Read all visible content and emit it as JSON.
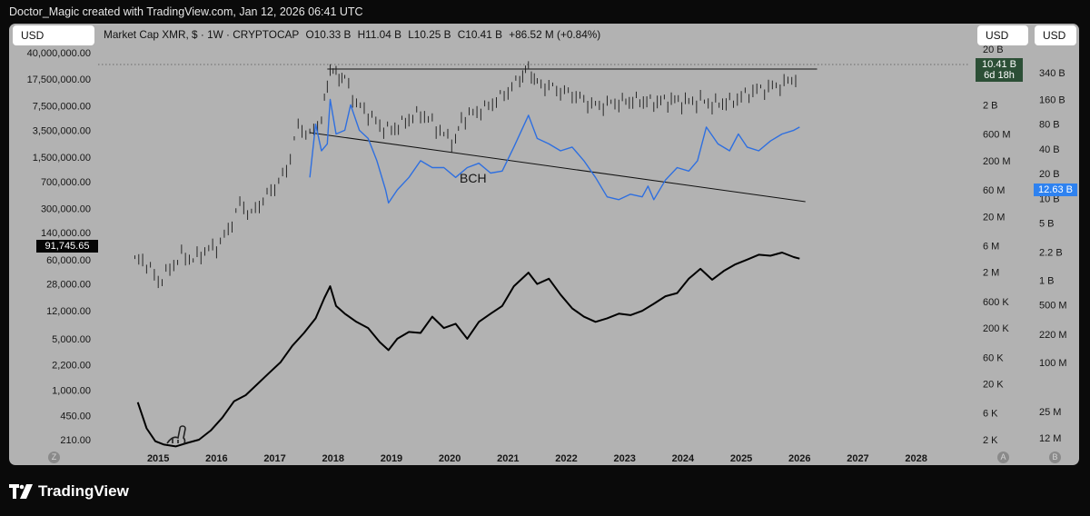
{
  "credit": "Doctor_Magic created with TradingView.com, Jan 12, 2026 06:41 UTC",
  "currency_buttons": {
    "left": "USD",
    "right_a": "USD",
    "right_b": "USD"
  },
  "legend": {
    "symbol": "Market Cap XMR, $ · 1W · CRYPTOCAP",
    "open": "O10.33 B",
    "high": "H11.04 B",
    "low": "L10.25 B",
    "close": "C10.41 B",
    "change": "+86.52 M (+0.84%)"
  },
  "badges": {
    "xmr_value": "10.41 B",
    "xmr_countdown": "6d 18h",
    "bch_value": "12.63 B",
    "left_value": "91,745.65"
  },
  "scale_buttons": {
    "left": "Z",
    "right_a": "A",
    "right_b": "B"
  },
  "brand": "TradingView",
  "chart_data": {
    "type": "line",
    "x_axis": {
      "range": [
        2014,
        2028.8
      ],
      "ticks": [
        "2015",
        "2016",
        "2017",
        "2018",
        "2019",
        "2020",
        "2021",
        "2022",
        "2023",
        "2024",
        "2025",
        "2026",
        "2027",
        "2028"
      ]
    },
    "left_axis": {
      "scale": "log",
      "ticks": [
        "40,000,000.00",
        "17,500,000.00",
        "7,500,000.00",
        "3,500,000.00",
        "1,500,000.00",
        "700,000.00",
        "300,000.00",
        "140,000.00",
        "60,000.00",
        "28,000.00",
        "12,000.00",
        "5,000.00",
        "2,200.00",
        "1,000.00",
        "450.00",
        "210.00"
      ]
    },
    "right_axis_a": {
      "scale": "log",
      "ticks": [
        "20 B",
        "2 B",
        "600 M",
        "200 M",
        "60 M",
        "20 M",
        "6 M",
        "2 M",
        "600 K",
        "200 K",
        "60 K",
        "20 K",
        "6 K",
        "2 K"
      ]
    },
    "right_axis_b": {
      "scale": "log",
      "ticks": [
        "340 B",
        "160 B",
        "80 B",
        "40 B",
        "20 B",
        "10 B",
        "5 B",
        "2.2 B",
        "1 B",
        "500 M",
        "220 M",
        "100 M",
        "25 M",
        "12 M"
      ]
    },
    "annotations": [
      "BCH"
    ],
    "series": [
      {
        "name": "Market Cap XMR",
        "style": "candles",
        "color": "#111111",
        "x": [
          2014.6,
          2014.8,
          2015.0,
          2015.2,
          2015.4,
          2015.6,
          2015.8,
          2016.0,
          2016.2,
          2016.4,
          2016.6,
          2016.8,
          2017.0,
          2017.2,
          2017.4,
          2017.6,
          2017.8,
          2017.95,
          2018.05,
          2018.2,
          2018.4,
          2018.6,
          2018.8,
          2019.0,
          2019.3,
          2019.5,
          2019.7,
          2019.9,
          2020.1,
          2020.2,
          2020.4,
          2020.6,
          2020.8,
          2021.0,
          2021.2,
          2021.35,
          2021.5,
          2021.7,
          2021.9,
          2022.1,
          2022.3,
          2022.5,
          2022.7,
          2022.9,
          2023.2,
          2023.5,
          2023.8,
          2024.1,
          2024.3,
          2024.5,
          2024.8,
          2025.0,
          2025.2,
          2025.4,
          2025.6,
          2025.8,
          2026.0
        ],
        "y": [
          60000,
          55000,
          30000,
          45000,
          70000,
          60000,
          80000,
          90000,
          150000,
          350000,
          250000,
          400000,
          600000,
          1000000,
          4000000,
          3000000,
          5000000,
          25000000,
          20000000,
          18000000,
          8000000,
          6000000,
          4000000,
          3500000,
          5000000,
          6000000,
          4500000,
          3000000,
          2500000,
          5000000,
          6000000,
          7000000,
          9000000,
          12000000,
          18000000,
          25000000,
          15000000,
          14000000,
          12000000,
          11000000,
          9000000,
          7500000,
          8000000,
          8500000,
          9000000,
          8500000,
          9000000,
          8500000,
          9000000,
          8000000,
          8500000,
          10000000,
          12000000,
          13000000,
          14000000,
          16000000,
          20000000
        ]
      },
      {
        "name": "BCH",
        "style": "line",
        "color": "#2e6fe0",
        "x": [
          2017.6,
          2017.7,
          2017.8,
          2017.9,
          2017.95,
          2018.05,
          2018.2,
          2018.3,
          2018.45,
          2018.6,
          2018.75,
          2018.9,
          2018.95,
          2019.1,
          2019.3,
          2019.5,
          2019.7,
          2019.9,
          2020.1,
          2020.3,
          2020.5,
          2020.7,
          2020.9,
          2021.1,
          2021.35,
          2021.5,
          2021.7,
          2021.9,
          2022.1,
          2022.3,
          2022.5,
          2022.7,
          2022.9,
          2023.1,
          2023.3,
          2023.4,
          2023.5,
          2023.7,
          2023.9,
          2024.1,
          2024.25,
          2024.4,
          2024.6,
          2024.8,
          2024.95,
          2025.1,
          2025.3,
          2025.5,
          2025.7,
          2025.9,
          2026.0
        ],
        "y": [
          100000000,
          900000000,
          300000000,
          400000000,
          2500000000,
          600000000,
          700000000,
          2000000000,
          700000000,
          500000000,
          200000000,
          60000000,
          35000000,
          60000000,
          100000000,
          200000000,
          150000000,
          150000000,
          100000000,
          150000000,
          180000000,
          120000000,
          130000000,
          350000000,
          1300000000,
          500000000,
          400000000,
          300000000,
          350000000,
          200000000,
          100000000,
          45000000,
          40000000,
          50000000,
          45000000,
          70000000,
          40000000,
          90000000,
          150000000,
          130000000,
          200000000,
          800000000,
          400000000,
          300000000,
          600000000,
          350000000,
          300000000,
          450000000,
          600000000,
          700000000,
          800000000
        ]
      },
      {
        "name": "",
        "style": "line",
        "color": "#000000",
        "x": [
          2014.65,
          2014.8,
          2014.95,
          2015.1,
          2015.3,
          2015.5,
          2015.7,
          2015.9,
          2016.1,
          2016.3,
          2016.5,
          2016.7,
          2016.9,
          2017.1,
          2017.3,
          2017.5,
          2017.7,
          2017.85,
          2017.95,
          2018.05,
          2018.2,
          2018.4,
          2018.6,
          2018.8,
          2018.95,
          2019.1,
          2019.3,
          2019.5,
          2019.7,
          2019.9,
          2020.1,
          2020.3,
          2020.5,
          2020.7,
          2020.9,
          2021.1,
          2021.35,
          2021.5,
          2021.7,
          2021.9,
          2022.1,
          2022.3,
          2022.5,
          2022.7,
          2022.9,
          2023.1,
          2023.3,
          2023.5,
          2023.7,
          2023.9,
          2024.1,
          2024.3,
          2024.5,
          2024.7,
          2024.9,
          2025.1,
          2025.3,
          2025.5,
          2025.7,
          2025.9,
          2026.0
        ],
        "y": [
          680,
          300,
          200,
          180,
          170,
          190,
          210,
          280,
          420,
          700,
          850,
          1200,
          1700,
          2400,
          4000,
          6000,
          9500,
          18000,
          26000,
          14000,
          11000,
          8500,
          7000,
          4500,
          3500,
          5000,
          6200,
          6000,
          10000,
          7000,
          8000,
          5000,
          8500,
          11000,
          14000,
          26000,
          40000,
          28000,
          33000,
          20000,
          13000,
          10000,
          8500,
          9500,
          11000,
          10500,
          12000,
          15000,
          19000,
          21000,
          33000,
          45000,
          32000,
          42000,
          52000,
          60000,
          70000,
          68000,
          75000,
          65000,
          62000
        ]
      }
    ],
    "trendlines": [
      "horizontal resistance at XMR all-time-high level",
      "descending line from 2017 high to 2026"
    ]
  }
}
